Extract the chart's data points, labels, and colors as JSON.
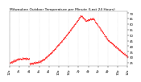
{
  "title": "Milwaukee Outdoor Temperature per Minute (Last 24 Hours)",
  "background_color": "#ffffff",
  "plot_bg_color": "#ffffff",
  "line_color": "#ff0000",
  "grid_color": "#cccccc",
  "ylim": [
    22,
    72
  ],
  "ytick_vals": [
    25,
    30,
    35,
    40,
    45,
    50,
    55,
    60,
    65,
    70
  ],
  "xlim": [
    0,
    1440
  ],
  "num_points": 1440,
  "title_fontsize": 3.2,
  "tick_fontsize": 2.8,
  "marker_size": 0.6
}
